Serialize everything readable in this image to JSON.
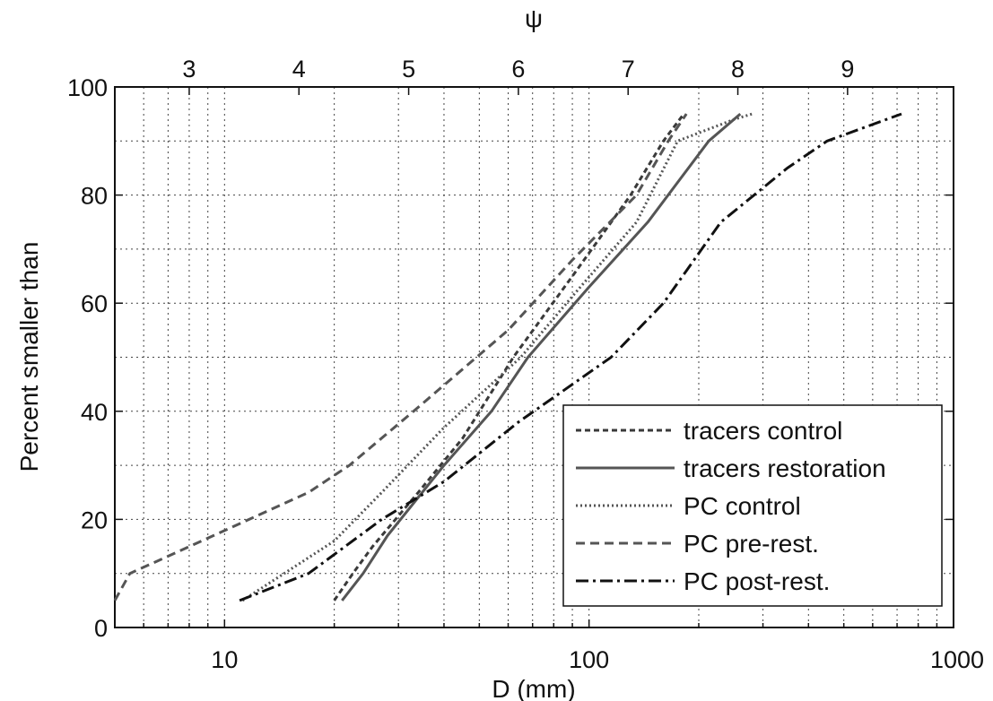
{
  "chart_data": {
    "type": "line",
    "title": "",
    "xlabel": "D (mm)",
    "ylabel": "Percent smaller than",
    "x2label": "ψ",
    "xscale": "log",
    "xlim": [
      5,
      1000
    ],
    "ylim": [
      0,
      100
    ],
    "grid": true,
    "legend_position": "bottom-right",
    "x_ticks": [
      10,
      100,
      1000
    ],
    "x_tick_labels": [
      "10",
      "100",
      "1000"
    ],
    "y_ticks": [
      0,
      20,
      40,
      60,
      80,
      100
    ],
    "y_tick_labels": [
      "0",
      "20",
      "40",
      "60",
      "80",
      "100"
    ],
    "x2_ticks": [
      3,
      4,
      5,
      6,
      7,
      8,
      9
    ],
    "x2_tick_labels": [
      "3",
      "4",
      "5",
      "6",
      "7",
      "8",
      "9"
    ],
    "series": [
      {
        "name": "tracers control",
        "color": "#3a3a3a",
        "dash": "6,4",
        "x": [
          20.0,
          22.5,
          25.5,
          34,
          45,
          62,
          90,
          130,
          160,
          182
        ],
        "y": [
          5,
          10,
          15,
          25,
          35,
          50,
          65,
          80,
          90,
          95
        ]
      },
      {
        "name": "tracers restoration",
        "color": "#555555",
        "dash": "",
        "x": [
          21,
          24,
          28,
          40,
          54,
          68,
          100,
          145,
          213,
          260
        ],
        "y": [
          5,
          10,
          17,
          30,
          40,
          50,
          63,
          75,
          90,
          95
        ]
      },
      {
        "name": "PC control",
        "color": "#555555",
        "dash": "2,3",
        "x": [
          11.2,
          20,
          27,
          40,
          65,
          92,
          135,
          175,
          250,
          280
        ],
        "y": [
          5,
          16,
          25,
          37,
          50,
          62,
          75,
          90,
          94,
          95
        ]
      },
      {
        "name": "PC pre-rest.",
        "color": "#555555",
        "dash": "10,6",
        "x": [
          5,
          5.5,
          6.4,
          17,
          22,
          33,
          60,
          90,
          135,
          165,
          185
        ],
        "y": [
          5,
          10,
          12,
          25,
          30,
          40,
          55,
          68,
          80,
          90,
          95
        ]
      },
      {
        "name": "PC post-rest.",
        "color": "#111111",
        "dash": "14,5,3,5",
        "x": [
          11,
          17,
          27,
          40,
          64,
          115,
          160,
          230,
          350,
          450,
          720
        ],
        "y": [
          5,
          10,
          20,
          27,
          38,
          50,
          60,
          75,
          85,
          90,
          95
        ]
      }
    ]
  }
}
